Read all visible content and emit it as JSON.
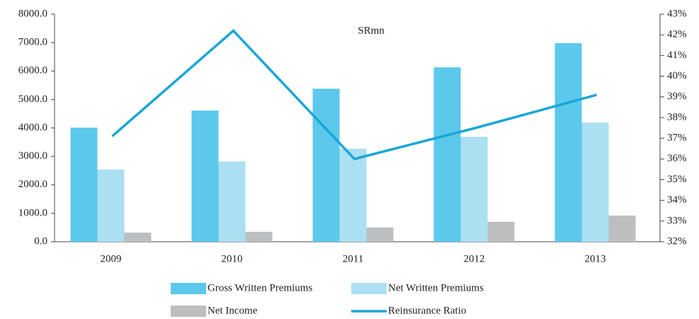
{
  "chart_data": {
    "type": "bar-line",
    "title": "SRmn",
    "categories": [
      "2009",
      "2010",
      "2011",
      "2012",
      "2013"
    ],
    "series": [
      {
        "name": "Gross Written Premiums",
        "color": "#5bc8ec",
        "type": "bar",
        "values": [
          4010,
          4610,
          5380,
          6130,
          6980
        ]
      },
      {
        "name": "Net Written Premiums",
        "color": "#abdff2",
        "type": "bar",
        "values": [
          2540,
          2820,
          3270,
          3690,
          4190
        ]
      },
      {
        "name": "Net Income",
        "color": "#bcbec0",
        "type": "bar",
        "values": [
          320,
          350,
          500,
          700,
          920
        ]
      },
      {
        "name": "Reinsurance Ratio",
        "color": "#1aa6d6",
        "type": "line",
        "axis": "y2",
        "values": [
          37.1,
          42.2,
          36.0,
          37.5,
          39.1
        ]
      }
    ],
    "ylim": [
      0,
      8000
    ],
    "yticks": [
      {
        "value": 0,
        "label": "0.0"
      },
      {
        "value": 1000,
        "label": "1000.0"
      },
      {
        "value": 2000,
        "label": "2000.0"
      },
      {
        "value": 3000,
        "label": "3000.0"
      },
      {
        "value": 4000,
        "label": "4000.0"
      },
      {
        "value": 5000,
        "label": "5000.0"
      },
      {
        "value": 6000,
        "label": "6000.0"
      },
      {
        "value": 7000,
        "label": "7000.0"
      },
      {
        "value": 8000,
        "label": "8000.0"
      }
    ],
    "y2lim": [
      32,
      43
    ],
    "y2ticks": [
      {
        "value": 32,
        "label": "32%"
      },
      {
        "value": 33,
        "label": "33%"
      },
      {
        "value": 34,
        "label": "34%"
      },
      {
        "value": 35,
        "label": "35%"
      },
      {
        "value": 36,
        "label": "36%"
      },
      {
        "value": 37,
        "label": "37%"
      },
      {
        "value": 38,
        "label": "38%"
      },
      {
        "value": 39,
        "label": "39%"
      },
      {
        "value": 40,
        "label": "40%"
      },
      {
        "value": 41,
        "label": "41%"
      },
      {
        "value": 42,
        "label": "42%"
      },
      {
        "value": 43,
        "label": "43%"
      }
    ],
    "grid": false
  }
}
